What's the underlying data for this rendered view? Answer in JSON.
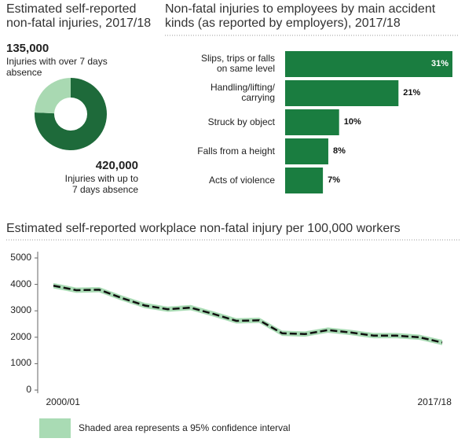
{
  "chart_data": [
    {
      "type": "donut",
      "title": "Estimated self-reported\nnon-fatal injuries, 2017/18",
      "categories": [
        "Injuries with over 7 days\nabsence",
        "Injuries with up to\n7 days absence"
      ],
      "values": [
        135000,
        420000
      ],
      "value_labels": [
        "135,000",
        "420,000"
      ],
      "colors": [
        "#a9d9b2",
        "#1e6a3a"
      ]
    },
    {
      "type": "hbar",
      "title": "Non-fatal injuries to employees by main accident\nkinds (as reported by employers), 2017/18",
      "categories": [
        "Slips, trips or falls\non same level",
        "Handling/lifting/\ncarrying",
        "Struck by object",
        "Falls from a height",
        "Acts of violence"
      ],
      "values": [
        31,
        21,
        10,
        8,
        7
      ],
      "value_labels": [
        "31%",
        "21%",
        "10%",
        "8%",
        "7%"
      ],
      "color": "#1a7d40"
    },
    {
      "type": "line",
      "title": "Estimated self-reported workplace non-fatal injury per 100,000 workers",
      "categories": [
        "2000/01",
        null,
        null,
        null,
        null,
        null,
        null,
        null,
        null,
        null,
        null,
        null,
        null,
        null,
        null,
        null,
        null,
        "2017/18"
      ],
      "values": [
        3950,
        3780,
        3800,
        3480,
        3200,
        3060,
        3120,
        2880,
        2620,
        2640,
        2150,
        2120,
        2270,
        2180,
        2060,
        2060,
        2000,
        1800
      ],
      "band": {
        "name": "Shaded area represents a 95% confidence interval",
        "color": "#a9dbb4",
        "lower": [
          3850,
          3680,
          3700,
          3380,
          3100,
          2960,
          3020,
          2780,
          2520,
          2540,
          2050,
          2020,
          2170,
          2080,
          1960,
          1960,
          1900,
          1700
        ],
        "upper": [
          4050,
          3880,
          3900,
          3580,
          3300,
          3160,
          3220,
          2980,
          2720,
          2740,
          2250,
          2220,
          2370,
          2280,
          2160,
          2160,
          2100,
          1900
        ]
      },
      "color": "#111111",
      "ylim": [
        0,
        5000
      ],
      "yticks": [
        0,
        1000,
        2000,
        3000,
        4000,
        5000
      ]
    }
  ]
}
